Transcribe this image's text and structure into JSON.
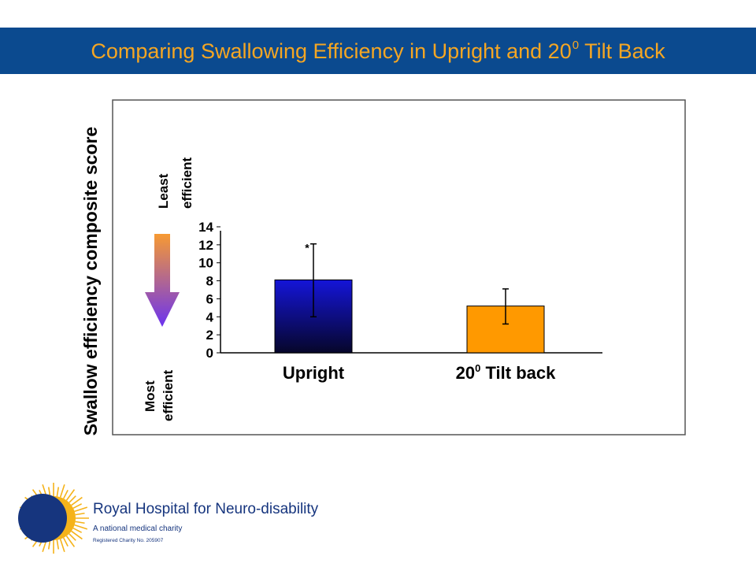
{
  "title": {
    "prefix": "Comparing Swallowing Efficiency in Upright and 20",
    "superscript": "0",
    "suffix": "Tilt Back"
  },
  "chart_data": {
    "type": "bar",
    "categories": [
      "Upright",
      "20⁰ Tilt back"
    ],
    "category_labels": [
      {
        "text": "Upright",
        "sup": ""
      },
      {
        "text": "20",
        "sup": "0",
        "rest": " Tilt back"
      }
    ],
    "values": [
      8.1,
      5.2
    ],
    "error": [
      {
        "low": 4.0,
        "high": 12.1
      },
      {
        "low": 3.2,
        "high": 7.1
      }
    ],
    "significance_markers": [
      "*",
      ""
    ],
    "ylabel": "Swallow efficiency composite score",
    "ylim": [
      0,
      14
    ],
    "yticks": [
      0,
      2,
      4,
      6,
      8,
      10,
      12,
      14
    ],
    "grid": false,
    "annotations": {
      "top_line1": "Least",
      "top_line2": "efficient",
      "bottom_line1": "Most",
      "bottom_line2": "efficient"
    },
    "colors": {
      "bar1_top": "#1515d8",
      "bar1_bottom": "#06062a",
      "bar2": "#ff9900",
      "arrow_top": "#f79a32",
      "arrow_bottom": "#6b33f0"
    }
  },
  "logo": {
    "name": "Royal Hospital for Neuro-disability",
    "tagline": "A national medical charity",
    "registration": "Registered Charity No. 205907",
    "colors": {
      "circle": "#16357e",
      "sun": "#f5b31a"
    }
  }
}
